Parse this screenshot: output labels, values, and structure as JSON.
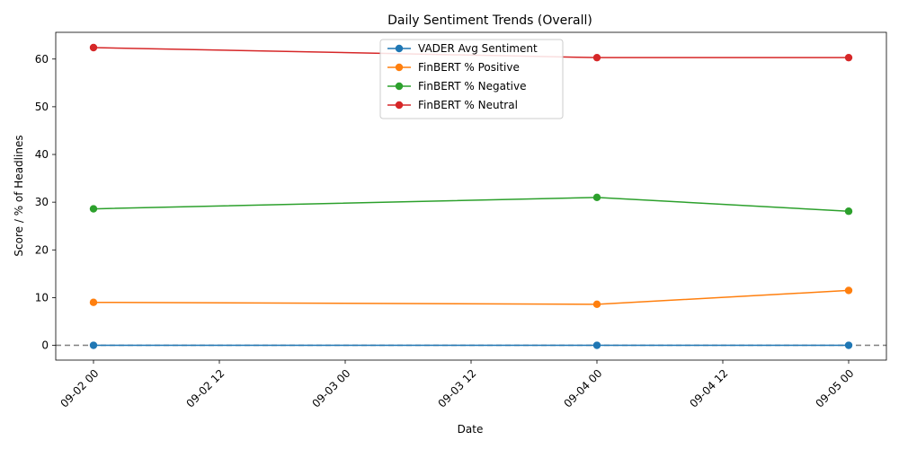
{
  "chart_data": {
    "type": "line",
    "title": "Daily Sentiment Trends (Overall)",
    "xlabel": "Date",
    "ylabel": "Score / % of Headlines",
    "x": [
      "09-02 00",
      "09-04 00",
      "09-05 00"
    ],
    "x_hours": [
      0,
      48,
      72
    ],
    "xlim_hours": [
      -3.6,
      75.6
    ],
    "xticks": [
      {
        "hours": 0,
        "label": "09-02 00"
      },
      {
        "hours": 12,
        "label": "09-02 12"
      },
      {
        "hours": 24,
        "label": "09-03 00"
      },
      {
        "hours": 36,
        "label": "09-03 12"
      },
      {
        "hours": 48,
        "label": "09-04 00"
      },
      {
        "hours": 60,
        "label": "09-04 12"
      },
      {
        "hours": 72,
        "label": "09-05 00"
      }
    ],
    "ylim": [
      -3.1,
      65.6
    ],
    "yticks": [
      0,
      10,
      20,
      30,
      40,
      50,
      60
    ],
    "series": [
      {
        "name": "VADER Avg Sentiment",
        "color": "#1f77b4",
        "values": [
          0.0,
          0.0,
          0.0
        ]
      },
      {
        "name": "FinBERT % Positive",
        "color": "#ff7f0e",
        "values": [
          9.0,
          8.6,
          11.5
        ]
      },
      {
        "name": "FinBERT % Negative",
        "color": "#2ca02c",
        "values": [
          28.6,
          31.0,
          28.1
        ]
      },
      {
        "name": "FinBERT % Neutral",
        "color": "#d62728",
        "values": [
          62.4,
          60.3,
          60.3
        ]
      }
    ],
    "reference_line": {
      "y": 0,
      "style": "dashed",
      "color": "#808080"
    },
    "legend": "upper-center",
    "grid": false
  }
}
